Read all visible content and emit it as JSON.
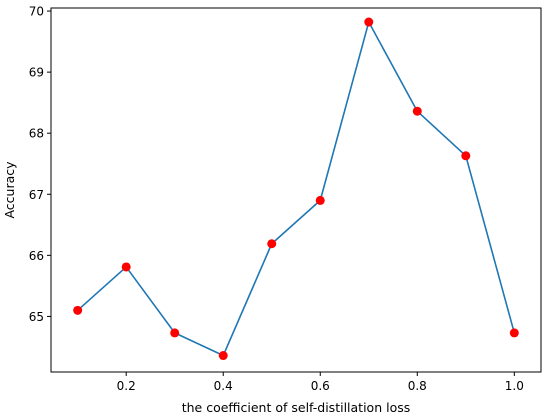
{
  "chart_data": {
    "type": "line",
    "title": "",
    "xlabel": "the coefficient of self-distillation loss",
    "ylabel": "Accuracy",
    "xlim": [
      0.045,
      1.055
    ],
    "ylim": [
      64.09,
      70.05
    ],
    "x_ticks": [
      0.2,
      0.4,
      0.6,
      0.8,
      1.0
    ],
    "x_tick_labels": [
      "0.2",
      "0.4",
      "0.6",
      "0.8",
      "1.0"
    ],
    "y_ticks": [
      65,
      66,
      67,
      68,
      69,
      70
    ],
    "y_tick_labels": [
      "65",
      "66",
      "67",
      "68",
      "69",
      "70"
    ],
    "grid": false,
    "legend": false,
    "series": [
      {
        "x": [
          0.1,
          0.2,
          0.3,
          0.4,
          0.5,
          0.6,
          0.7,
          0.8,
          0.9,
          1.0
        ],
        "values": [
          65.1,
          65.81,
          64.73,
          64.36,
          66.19,
          66.9,
          69.82,
          68.36,
          67.63,
          64.73
        ],
        "line_color": "#1f77b4",
        "marker_color": "#ff0000"
      }
    ]
  }
}
